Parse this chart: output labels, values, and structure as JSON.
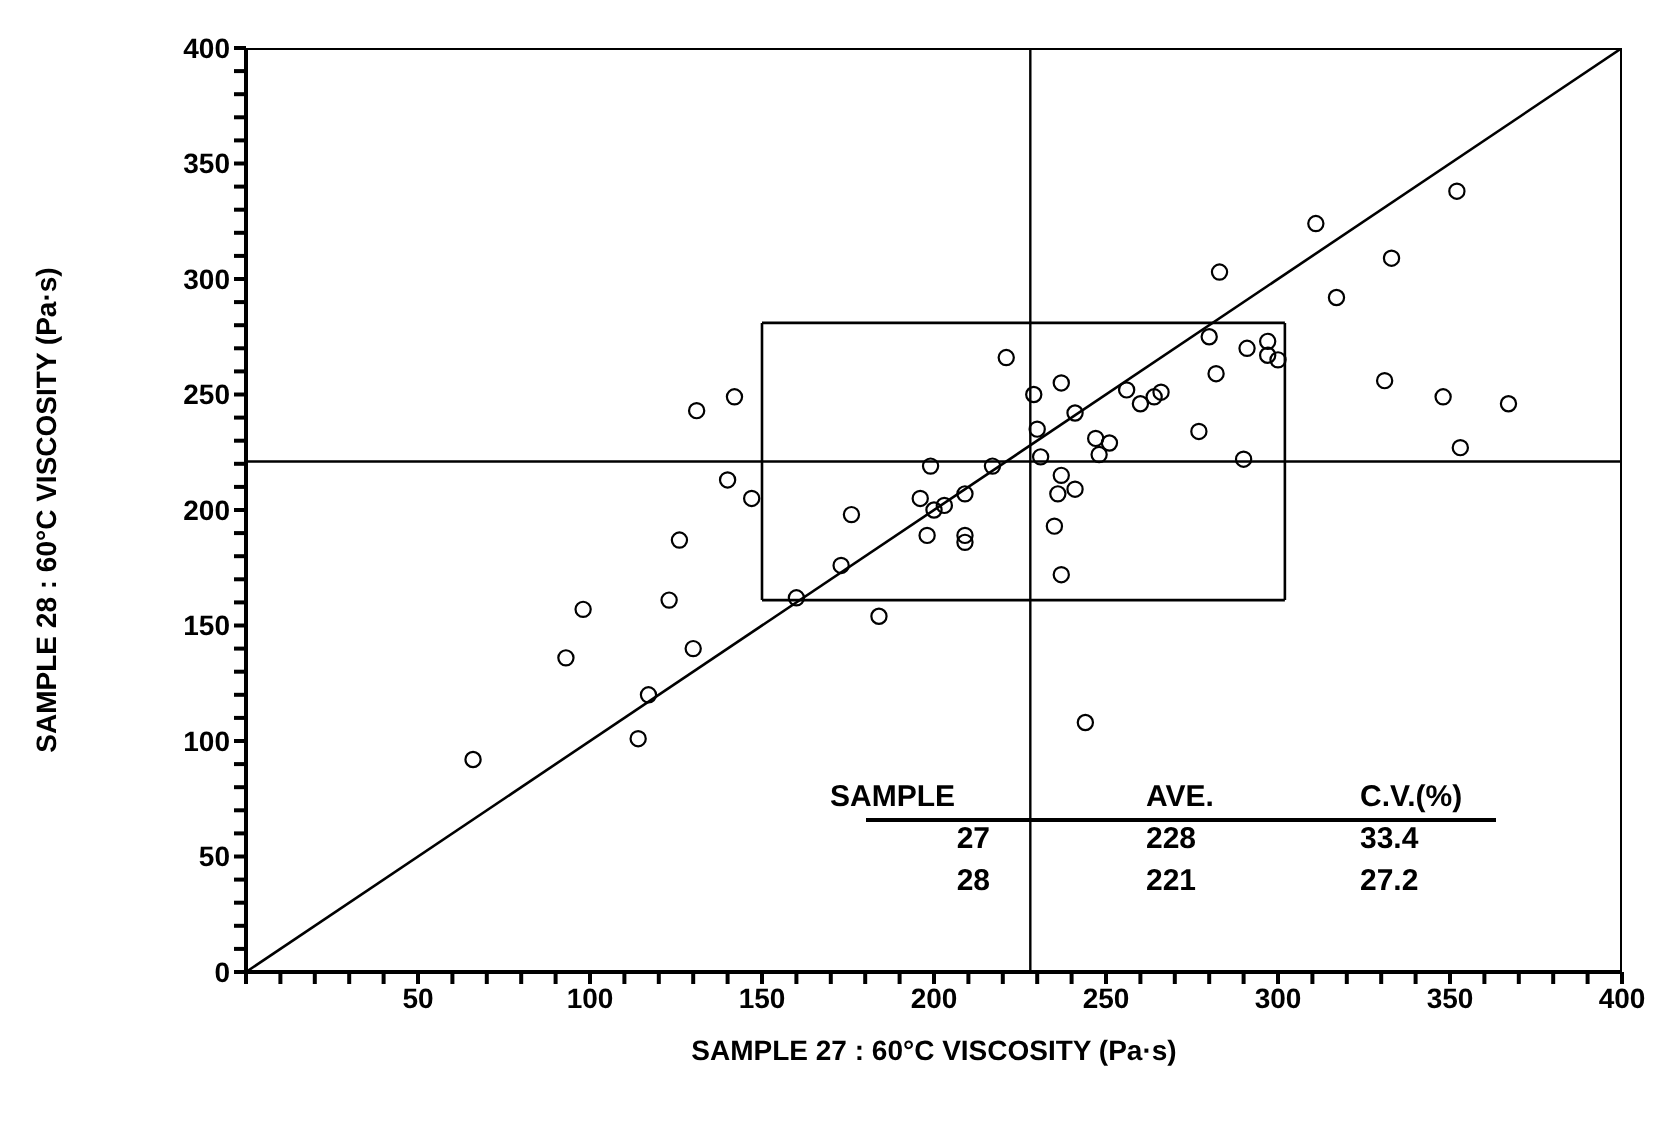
{
  "chart_data": {
    "type": "scatter",
    "xlabel": "SAMPLE 27 : 60°C VISCOSITY (Pa·s)",
    "ylabel": "SAMPLE 28 : 60°C VISCOSITY (Pa·s)",
    "xlim": [
      0,
      400
    ],
    "ylim": [
      0,
      400
    ],
    "xticks": [
      {
        "value": 0,
        "label": null
      },
      {
        "value": 10,
        "label": null
      },
      {
        "value": 20,
        "label": null
      },
      {
        "value": 30,
        "label": null
      },
      {
        "value": 40,
        "label": null
      },
      50,
      {
        "value": 60,
        "label": null
      },
      {
        "value": 70,
        "label": null
      },
      {
        "value": 80,
        "label": null
      },
      {
        "value": 90,
        "label": null
      },
      100,
      {
        "value": 110,
        "label": null
      },
      {
        "value": 120,
        "label": null
      },
      {
        "value": 130,
        "label": null
      },
      {
        "value": 140,
        "label": null
      },
      150,
      {
        "value": 160,
        "label": null
      },
      {
        "value": 170,
        "label": null
      },
      {
        "value": 180,
        "label": null
      },
      {
        "value": 190,
        "label": null
      },
      200,
      {
        "value": 210,
        "label": null
      },
      {
        "value": 220,
        "label": null
      },
      {
        "value": 230,
        "label": null
      },
      {
        "value": 240,
        "label": null
      },
      250,
      {
        "value": 260,
        "label": null
      },
      {
        "value": 270,
        "label": null
      },
      {
        "value": 280,
        "label": null
      },
      {
        "value": 290,
        "label": null
      },
      300,
      {
        "value": 310,
        "label": null
      },
      {
        "value": 320,
        "label": null
      },
      {
        "value": 330,
        "label": null
      },
      {
        "value": 340,
        "label": null
      },
      350,
      {
        "value": 360,
        "label": null
      },
      {
        "value": 370,
        "label": null
      },
      {
        "value": 380,
        "label": null
      },
      {
        "value": 390,
        "label": null
      },
      400
    ],
    "yticks": [
      0,
      {
        "value": 10,
        "label": null
      },
      {
        "value": 20,
        "label": null
      },
      {
        "value": 30,
        "label": null
      },
      {
        "value": 40,
        "label": null
      },
      50,
      {
        "value": 60,
        "label": null
      },
      {
        "value": 70,
        "label": null
      },
      {
        "value": 80,
        "label": null
      },
      {
        "value": 90,
        "label": null
      },
      100,
      {
        "value": 110,
        "label": null
      },
      {
        "value": 120,
        "label": null
      },
      {
        "value": 130,
        "label": null
      },
      {
        "value": 140,
        "label": null
      },
      150,
      {
        "value": 160,
        "label": null
      },
      {
        "value": 170,
        "label": null
      },
      {
        "value": 180,
        "label": null
      },
      {
        "value": 190,
        "label": null
      },
      200,
      {
        "value": 210,
        "label": null
      },
      {
        "value": 220,
        "label": null
      },
      {
        "value": 230,
        "label": null
      },
      {
        "value": 240,
        "label": null
      },
      250,
      {
        "value": 260,
        "label": null
      },
      {
        "value": 270,
        "label": null
      },
      {
        "value": 280,
        "label": null
      },
      {
        "value": 290,
        "label": null
      },
      300,
      {
        "value": 310,
        "label": null
      },
      {
        "value": 320,
        "label": null
      },
      {
        "value": 330,
        "label": null
      },
      {
        "value": 340,
        "label": null
      },
      350,
      {
        "value": 360,
        "label": null
      },
      {
        "value": 370,
        "label": null
      },
      {
        "value": 380,
        "label": null
      },
      {
        "value": 390,
        "label": null
      },
      400
    ],
    "marker": "circle",
    "series": [
      {
        "color": "#000000",
        "x": [
          66,
          93,
          98,
          114,
          117,
          123,
          126,
          130,
          131,
          140,
          142,
          147,
          160,
          173,
          176,
          184,
          196,
          198,
          199,
          200,
          203,
          209,
          209,
          209,
          217,
          221,
          229,
          230,
          231,
          235,
          236,
          237,
          237,
          237,
          241,
          241,
          244,
          247,
          248,
          251,
          256,
          260,
          264,
          266,
          277,
          280,
          282,
          283,
          290,
          291,
          297,
          297,
          300,
          311,
          317,
          331,
          333,
          348,
          352,
          353,
          367
        ],
        "values": [
          92,
          136,
          157,
          101,
          120,
          161,
          187,
          140,
          243,
          213,
          249,
          205,
          162,
          176,
          198,
          154,
          205,
          189,
          219,
          200,
          202,
          207,
          189,
          186,
          219,
          266,
          250,
          235,
          223,
          193,
          207,
          255,
          172,
          215,
          242,
          209,
          108,
          231,
          224,
          229,
          252,
          246,
          249,
          251,
          234,
          275,
          259,
          303,
          222,
          270,
          273,
          267,
          265,
          324,
          292,
          256,
          309,
          249,
          338,
          227,
          246
        ]
      },
      {
        "type": "line",
        "color": "#000000",
        "marker": "none",
        "x": [
          0,
          400
        ],
        "values": [
          0,
          400
        ]
      },
      {
        "type": "line",
        "color": "#000000",
        "marker": "none",
        "x": [
          150,
          302
        ],
        "values": [
          161,
          161
        ]
      },
      {
        "type": "line",
        "color": "#000000",
        "marker": "none",
        "x": [
          150,
          302
        ],
        "values": [
          281,
          281
        ]
      },
      {
        "type": "line",
        "color": "#000000",
        "marker": "none",
        "x": [
          150,
          150
        ],
        "values": [
          161,
          281
        ]
      },
      {
        "type": "line",
        "color": "#000000",
        "marker": "none",
        "x": [
          302,
          302
        ],
        "values": [
          161,
          281
        ]
      }
    ],
    "ref_lines": [
      {
        "axis": "x",
        "value": 228,
        "color": "#000000"
      },
      {
        "axis": "y",
        "value": 221,
        "color": "#000000"
      }
    ],
    "annotations": [
      "SAMPLE",
      "AVE.",
      "C.V.(%)",
      "27",
      "228",
      "33.4",
      "28",
      "221",
      "27.2"
    ]
  }
}
